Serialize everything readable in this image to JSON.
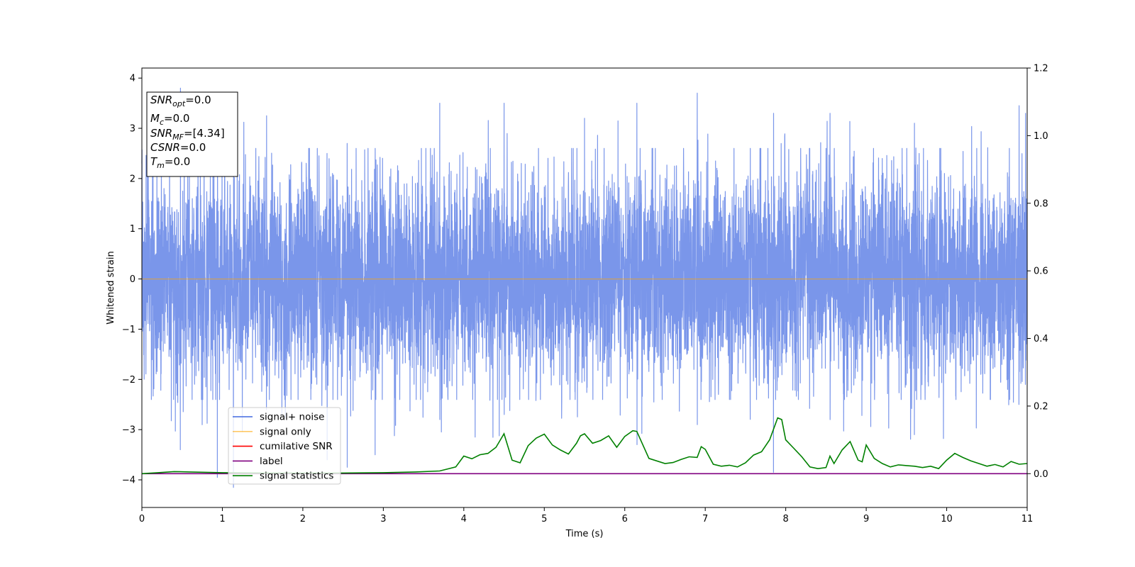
{
  "chart_data": {
    "type": "line",
    "xlabel": "Time (s)",
    "ylabel": "Whitened strain",
    "xlim": [
      0,
      11
    ],
    "ylim": [
      -4.55,
      4.2
    ],
    "y2lim": [
      -0.1,
      1.2
    ],
    "x_ticks": [
      0,
      1,
      2,
      3,
      4,
      5,
      6,
      7,
      8,
      9,
      10,
      11
    ],
    "y_ticks": [
      -4,
      -3,
      -2,
      -1,
      0,
      1,
      2,
      3,
      4
    ],
    "y2_ticks": [
      0.0,
      0.2,
      0.4,
      0.6,
      0.8,
      1.0,
      1.2
    ],
    "grid": false,
    "legend_position": "lower-left",
    "legend": [
      {
        "label": "signal+ noise",
        "color": "#4169e1"
      },
      {
        "label": "signal only",
        "color": "#ffa500"
      },
      {
        "label": "cumilative SNR",
        "color": "#ff0000"
      },
      {
        "label": "label",
        "color": "#800080"
      },
      {
        "label": "signal statistics",
        "color": "#008000"
      }
    ],
    "annotation": {
      "lines": [
        {
          "base": "SNR",
          "sub": "opt",
          "rest": "=0.0"
        },
        {
          "base": "M",
          "sub": "c",
          "rest": "=0.0"
        },
        {
          "base": "SNR",
          "sub": "MF",
          "rest": "=[4.34]"
        },
        {
          "base": "CSNR",
          "sub": "",
          "rest": "=0.0"
        },
        {
          "base": "T",
          "sub": "m",
          "rest": "=0.0"
        }
      ]
    },
    "series": [
      {
        "name": "signal+ noise",
        "axis": "left",
        "color": "#4169e1",
        "style": "dense noise, approx. gaussian, amplitude range -4.2 to 3.8",
        "peaks": [
          {
            "x": 0.0,
            "y_top": 2.3,
            "y_bottom": -2.1
          },
          {
            "x": 0.48,
            "y_top": 3.8,
            "y_bottom": -3.4
          },
          {
            "x": 0.94,
            "y_top": 2.4,
            "y_bottom": -3.95
          },
          {
            "x": 1.14,
            "y_top": 2.6,
            "y_bottom": -4.15
          },
          {
            "x": 1.55,
            "y_top": 3.25,
            "y_bottom": -2.6
          },
          {
            "x": 2.3,
            "y_top": 2.5,
            "y_bottom": -3.6
          },
          {
            "x": 2.55,
            "y_top": 2.7,
            "y_bottom": -3.75
          },
          {
            "x": 2.9,
            "y_top": 2.6,
            "y_bottom": -3.5
          },
          {
            "x": 3.7,
            "y_top": 3.5,
            "y_bottom": -2.8
          },
          {
            "x": 4.5,
            "y_top": 3.5,
            "y_bottom": -2.7
          },
          {
            "x": 5.5,
            "y_top": 3.2,
            "y_bottom": -3.5
          },
          {
            "x": 6.15,
            "y_top": 3.5,
            "y_bottom": -3.3
          },
          {
            "x": 6.9,
            "y_top": 3.7,
            "y_bottom": -2.9
          },
          {
            "x": 7.85,
            "y_top": 3.3,
            "y_bottom": -3.85
          },
          {
            "x": 8.55,
            "y_top": 3.3,
            "y_bottom": -2.8
          },
          {
            "x": 9.6,
            "y_top": 3.1,
            "y_bottom": -3.1
          },
          {
            "x": 10.9,
            "y_top": 3.45,
            "y_bottom": -2.5
          },
          {
            "x": 10.98,
            "y_top": 3.3,
            "y_bottom": -2.1
          }
        ]
      },
      {
        "name": "signal only",
        "axis": "left",
        "color": "#ffa500",
        "x": [
          0,
          11
        ],
        "y": [
          0,
          0
        ]
      },
      {
        "name": "cumilative SNR",
        "axis": "right",
        "color": "#ff0000",
        "x": [],
        "y": []
      },
      {
        "name": "label",
        "axis": "right",
        "color": "#800080",
        "x": [
          0,
          11
        ],
        "y": [
          0,
          0
        ]
      },
      {
        "name": "signal statistics",
        "axis": "right",
        "color": "#008000",
        "x": [
          0,
          0.2,
          0.4,
          0.6,
          1.0,
          1.5,
          2.0,
          2.5,
          3.0,
          3.4,
          3.7,
          3.9,
          4.0,
          4.1,
          4.2,
          4.3,
          4.4,
          4.5,
          4.6,
          4.7,
          4.8,
          4.9,
          5.0,
          5.1,
          5.2,
          5.3,
          5.4,
          5.45,
          5.5,
          5.6,
          5.7,
          5.8,
          5.9,
          6.0,
          6.1,
          6.15,
          6.3,
          6.5,
          6.6,
          6.7,
          6.8,
          6.9,
          6.95,
          7.0,
          7.1,
          7.2,
          7.3,
          7.4,
          7.5,
          7.6,
          7.7,
          7.8,
          7.9,
          7.95,
          8.0,
          8.1,
          8.2,
          8.3,
          8.4,
          8.5,
          8.55,
          8.6,
          8.7,
          8.8,
          8.9,
          8.95,
          9.0,
          9.1,
          9.2,
          9.3,
          9.4,
          9.5,
          9.6,
          9.7,
          9.8,
          9.9,
          10.0,
          10.1,
          10.2,
          10.3,
          10.4,
          10.5,
          10.6,
          10.7,
          10.8,
          10.9,
          11.0
        ],
        "y": [
          0.0,
          0.003,
          0.006,
          0.005,
          0.003,
          0.002,
          0.002,
          0.002,
          0.003,
          0.005,
          0.008,
          0.02,
          0.052,
          0.044,
          0.056,
          0.06,
          0.078,
          0.118,
          0.04,
          0.032,
          0.083,
          0.105,
          0.117,
          0.085,
          0.07,
          0.058,
          0.09,
          0.112,
          0.118,
          0.09,
          0.098,
          0.112,
          0.078,
          0.11,
          0.127,
          0.125,
          0.045,
          0.03,
          0.033,
          0.042,
          0.05,
          0.048,
          0.08,
          0.072,
          0.028,
          0.022,
          0.025,
          0.02,
          0.032,
          0.055,
          0.065,
          0.1,
          0.165,
          0.16,
          0.1,
          0.075,
          0.05,
          0.02,
          0.015,
          0.018,
          0.052,
          0.03,
          0.07,
          0.095,
          0.04,
          0.035,
          0.085,
          0.045,
          0.03,
          0.02,
          0.026,
          0.024,
          0.022,
          0.018,
          0.022,
          0.015,
          0.04,
          0.06,
          0.048,
          0.038,
          0.03,
          0.022,
          0.027,
          0.02,
          0.036,
          0.028,
          0.03
        ]
      }
    ]
  }
}
